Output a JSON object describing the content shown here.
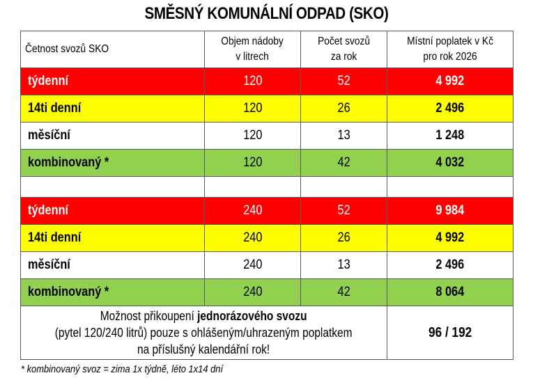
{
  "title": "SMĚSNÝ KOMUNÁLNÍ ODPAD (SKO)",
  "colors": {
    "weekly": "#ff0000",
    "biweekly": "#ffff00",
    "monthly": "#ffffff",
    "combined": "#92d050"
  },
  "table": {
    "headers": [
      {
        "line1": "Četnost svozů SKO",
        "line2": ""
      },
      {
        "line1": "Objem nádoby",
        "line2": "v litrech"
      },
      {
        "line1": "Počet svozů",
        "line2": "za rok"
      },
      {
        "line1": "Místní poplatek v Kč",
        "line2": "pro rok 2026"
      }
    ],
    "group120": [
      {
        "frequency": "týdenní",
        "volume": "120",
        "count": "52",
        "fee": "4 992"
      },
      {
        "frequency": "14ti denní",
        "volume": "120",
        "count": "26",
        "fee": "2 496"
      },
      {
        "frequency": "měsíční",
        "volume": "120",
        "count": "13",
        "fee": "1 248"
      },
      {
        "frequency": "kombinovaný *",
        "volume": "120",
        "count": "42",
        "fee": "4 032"
      }
    ],
    "group240": [
      {
        "frequency": "týdenní",
        "volume": "240",
        "count": "52",
        "fee": "9 984"
      },
      {
        "frequency": "14ti denní",
        "volume": "240",
        "count": "26",
        "fee": "4 992"
      },
      {
        "frequency": "měsíční",
        "volume": "240",
        "count": "13",
        "fee": "2 496"
      },
      {
        "frequency": "kombinovaný *",
        "volume": "240",
        "count": "42",
        "fee": "8 064"
      }
    ],
    "note": {
      "line1_prefix": "Možnost přikoupení ",
      "line1_bold": "jednorázového svozu",
      "line2": "(pytel 120/240 litrů) pouze s ohlášeným/uhrazeným poplatkem",
      "line3": "na příslušný kalendářní rok!",
      "price": "96 / 192"
    }
  },
  "footnote": "* kombinovaný svoz = zima 1x týdně, léto 1x14 dní"
}
